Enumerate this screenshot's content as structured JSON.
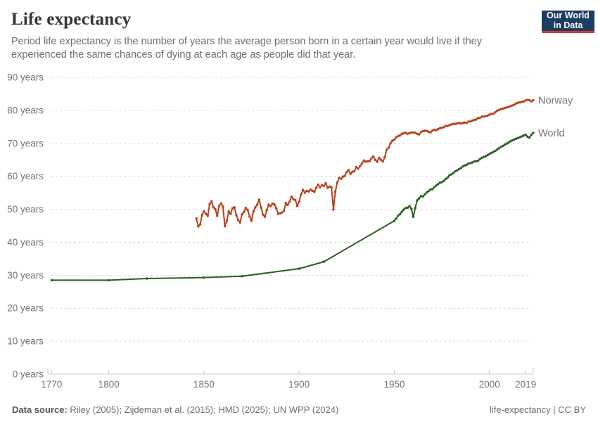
{
  "header": {
    "title": "Life expectancy",
    "subtitle": "Period life expectancy is the number of years the average person born in a certain year would live if they experienced the same chances of dying at each age as people did that year.",
    "logo": {
      "line1": "Our World",
      "line2": "in Data",
      "bg_color": "#1d3d63",
      "accent_color": "#d93a2d"
    }
  },
  "footer": {
    "source_label": "Data source:",
    "source_text": " Riley (2005); Zijdeman et al. (2015); HMD (2025); UN WPP (2024)",
    "license_text": "life-expectancy | CC BY"
  },
  "colors": {
    "norway_line": "#b5431f",
    "world_line": "#2c5e23",
    "grid": "#dadada",
    "axis": "#c8c8c8",
    "axis_text": "#737373"
  },
  "chart_data": {
    "type": "line",
    "title": "Life expectancy",
    "xlabel": "",
    "ylabel": "",
    "xlim": [
      1768,
      2023
    ],
    "ylim": [
      0,
      90
    ],
    "grid": "horizontal-dashed",
    "legend_position": "line-end-labels",
    "x_ticks": [
      {
        "year": 1770,
        "label": "1770"
      },
      {
        "year": 1800,
        "label": "1800"
      },
      {
        "year": 1850,
        "label": "1850"
      },
      {
        "year": 1900,
        "label": "1900"
      },
      {
        "year": 1950,
        "label": "1950"
      },
      {
        "year": 2000,
        "label": "2000"
      },
      {
        "year": 2019,
        "label": "2019"
      }
    ],
    "y_ticks": [
      {
        "value": 0,
        "label": "0 years"
      },
      {
        "value": 10,
        "label": "10 years"
      },
      {
        "value": 20,
        "label": "20 years"
      },
      {
        "value": 30,
        "label": "30 years"
      },
      {
        "value": 40,
        "label": "40 years"
      },
      {
        "value": 50,
        "label": "50 years"
      },
      {
        "value": 60,
        "label": "60 years"
      },
      {
        "value": 70,
        "label": "70 years"
      },
      {
        "value": 80,
        "label": "80 years"
      },
      {
        "value": 90,
        "label": "90 years"
      }
    ],
    "series": [
      {
        "name": "Norway",
        "color": "#b5431f",
        "points": [
          [
            1846,
            47.2
          ],
          [
            1847,
            44.8
          ],
          [
            1848,
            45.4
          ],
          [
            1849,
            48.3
          ],
          [
            1850,
            49.4
          ],
          [
            1851,
            48.6
          ],
          [
            1852,
            48.0
          ],
          [
            1853,
            51.6
          ],
          [
            1854,
            52.4
          ],
          [
            1855,
            50.6
          ],
          [
            1856,
            50.0
          ],
          [
            1857,
            48.0
          ],
          [
            1858,
            51.0
          ],
          [
            1859,
            51.8
          ],
          [
            1860,
            50.8
          ],
          [
            1861,
            44.9
          ],
          [
            1862,
            46.4
          ],
          [
            1863,
            49.4
          ],
          [
            1864,
            48.6
          ],
          [
            1865,
            50.3
          ],
          [
            1866,
            50.6
          ],
          [
            1867,
            48.2
          ],
          [
            1868,
            46.7
          ],
          [
            1869,
            46.0
          ],
          [
            1870,
            48.5
          ],
          [
            1871,
            49.2
          ],
          [
            1872,
            50.4
          ],
          [
            1873,
            49.8
          ],
          [
            1874,
            47.8
          ],
          [
            1875,
            46.5
          ],
          [
            1876,
            49.3
          ],
          [
            1877,
            50.6
          ],
          [
            1878,
            51.4
          ],
          [
            1879,
            52.9
          ],
          [
            1880,
            50.5
          ],
          [
            1881,
            48.4
          ],
          [
            1882,
            47.7
          ],
          [
            1883,
            49.7
          ],
          [
            1884,
            51.4
          ],
          [
            1885,
            51.0
          ],
          [
            1886,
            51.7
          ],
          [
            1887,
            51.5
          ],
          [
            1888,
            50.3
          ],
          [
            1889,
            48.6
          ],
          [
            1890,
            48.8
          ],
          [
            1891,
            49.0
          ],
          [
            1892,
            49.5
          ],
          [
            1893,
            51.9
          ],
          [
            1894,
            51.3
          ],
          [
            1895,
            52.3
          ],
          [
            1896,
            53.8
          ],
          [
            1897,
            53.0
          ],
          [
            1898,
            52.8
          ],
          [
            1899,
            51.0
          ],
          [
            1900,
            52.3
          ],
          [
            1901,
            54.5
          ],
          [
            1902,
            55.9
          ],
          [
            1903,
            55.0
          ],
          [
            1904,
            55.6
          ],
          [
            1905,
            55.4
          ],
          [
            1906,
            56.0
          ],
          [
            1907,
            55.6
          ],
          [
            1908,
            55.3
          ],
          [
            1909,
            56.5
          ],
          [
            1910,
            57.5
          ],
          [
            1911,
            56.6
          ],
          [
            1912,
            57.3
          ],
          [
            1913,
            57.1
          ],
          [
            1914,
            57.9
          ],
          [
            1915,
            56.5
          ],
          [
            1916,
            56.9
          ],
          [
            1917,
            56.6
          ],
          [
            1918,
            49.9
          ],
          [
            1919,
            55.3
          ],
          [
            1920,
            58.1
          ],
          [
            1921,
            59.5
          ],
          [
            1922,
            59.2
          ],
          [
            1923,
            59.9
          ],
          [
            1924,
            60.1
          ],
          [
            1925,
            61.3
          ],
          [
            1926,
            61.9
          ],
          [
            1927,
            60.7
          ],
          [
            1928,
            61.4
          ],
          [
            1929,
            61.5
          ],
          [
            1930,
            62.8
          ],
          [
            1931,
            62.3
          ],
          [
            1932,
            63.1
          ],
          [
            1933,
            63.9
          ],
          [
            1934,
            64.8
          ],
          [
            1935,
            64.4
          ],
          [
            1936,
            64.6
          ],
          [
            1937,
            64.6
          ],
          [
            1938,
            65.5
          ],
          [
            1939,
            66.0
          ],
          [
            1940,
            65.0
          ],
          [
            1941,
            64.4
          ],
          [
            1942,
            65.6
          ],
          [
            1943,
            65.0
          ],
          [
            1944,
            64.5
          ],
          [
            1945,
            65.8
          ],
          [
            1946,
            68.1
          ],
          [
            1947,
            68.7
          ],
          [
            1948,
            70.0
          ],
          [
            1949,
            70.8
          ],
          [
            1950,
            71.1
          ],
          [
            1951,
            71.8
          ],
          [
            1952,
            72.2
          ],
          [
            1953,
            72.4
          ],
          [
            1954,
            72.9
          ],
          [
            1955,
            73.1
          ],
          [
            1956,
            73.2
          ],
          [
            1957,
            72.9
          ],
          [
            1958,
            73.1
          ],
          [
            1959,
            73.3
          ],
          [
            1960,
            73.3
          ],
          [
            1961,
            73.2
          ],
          [
            1962,
            72.9
          ],
          [
            1963,
            72.7
          ],
          [
            1964,
            73.4
          ],
          [
            1965,
            73.7
          ],
          [
            1966,
            73.8
          ],
          [
            1967,
            73.8
          ],
          [
            1968,
            73.5
          ],
          [
            1969,
            73.3
          ],
          [
            1970,
            73.8
          ],
          [
            1971,
            74.1
          ],
          [
            1972,
            74.0
          ],
          [
            1973,
            74.3
          ],
          [
            1974,
            74.6
          ],
          [
            1975,
            74.7
          ],
          [
            1976,
            74.9
          ],
          [
            1977,
            75.3
          ],
          [
            1978,
            75.3
          ],
          [
            1979,
            75.5
          ],
          [
            1980,
            75.7
          ],
          [
            1981,
            75.9
          ],
          [
            1982,
            75.9
          ],
          [
            1983,
            76.0
          ],
          [
            1984,
            76.2
          ],
          [
            1985,
            76.0
          ],
          [
            1986,
            76.2
          ],
          [
            1987,
            76.3
          ],
          [
            1988,
            76.2
          ],
          [
            1989,
            76.6
          ],
          [
            1990,
            76.6
          ],
          [
            1991,
            76.9
          ],
          [
            1992,
            77.1
          ],
          [
            1993,
            77.2
          ],
          [
            1994,
            77.7
          ],
          [
            1995,
            77.7
          ],
          [
            1996,
            78.1
          ],
          [
            1997,
            78.1
          ],
          [
            1998,
            78.3
          ],
          [
            1999,
            78.4
          ],
          [
            2000,
            78.7
          ],
          [
            2001,
            78.9
          ],
          [
            2002,
            79.0
          ],
          [
            2003,
            79.4
          ],
          [
            2004,
            79.9
          ],
          [
            2005,
            80.1
          ],
          [
            2006,
            80.4
          ],
          [
            2007,
            80.5
          ],
          [
            2008,
            80.7
          ],
          [
            2009,
            80.9
          ],
          [
            2010,
            81.0
          ],
          [
            2011,
            81.3
          ],
          [
            2012,
            81.5
          ],
          [
            2013,
            81.7
          ],
          [
            2014,
            82.1
          ],
          [
            2015,
            82.3
          ],
          [
            2016,
            82.4
          ],
          [
            2017,
            82.6
          ],
          [
            2018,
            82.7
          ],
          [
            2019,
            83.0
          ],
          [
            2020,
            83.2
          ],
          [
            2021,
            83.1
          ],
          [
            2022,
            82.7
          ],
          [
            2023,
            83.1
          ]
        ]
      },
      {
        "name": "World",
        "color": "#2c5e23",
        "points": [
          [
            1770,
            28.5
          ],
          [
            1800,
            28.5
          ],
          [
            1820,
            29.0
          ],
          [
            1850,
            29.3
          ],
          [
            1870,
            29.7
          ],
          [
            1900,
            32.0
          ],
          [
            1913,
            34.1
          ],
          [
            1950,
            46.5
          ],
          [
            1951,
            47.2
          ],
          [
            1952,
            48.1
          ],
          [
            1953,
            48.5
          ],
          [
            1954,
            49.3
          ],
          [
            1955,
            49.9
          ],
          [
            1956,
            50.4
          ],
          [
            1957,
            50.5
          ],
          [
            1958,
            51.0
          ],
          [
            1959,
            50.1
          ],
          [
            1960,
            47.7
          ],
          [
            1961,
            50.4
          ],
          [
            1962,
            52.7
          ],
          [
            1963,
            53.3
          ],
          [
            1964,
            54.0
          ],
          [
            1965,
            53.9
          ],
          [
            1966,
            54.5
          ],
          [
            1967,
            55.1
          ],
          [
            1968,
            55.5
          ],
          [
            1969,
            56.0
          ],
          [
            1970,
            56.1
          ],
          [
            1971,
            56.7
          ],
          [
            1972,
            57.2
          ],
          [
            1973,
            57.6
          ],
          [
            1974,
            58.1
          ],
          [
            1975,
            58.2
          ],
          [
            1976,
            58.6
          ],
          [
            1977,
            59.2
          ],
          [
            1978,
            59.6
          ],
          [
            1979,
            60.3
          ],
          [
            1980,
            60.6
          ],
          [
            1981,
            61.0
          ],
          [
            1982,
            61.5
          ],
          [
            1983,
            61.8
          ],
          [
            1984,
            62.2
          ],
          [
            1985,
            62.5
          ],
          [
            1986,
            63.0
          ],
          [
            1987,
            63.3
          ],
          [
            1988,
            63.5
          ],
          [
            1989,
            63.9
          ],
          [
            1990,
            64.0
          ],
          [
            1991,
            64.2
          ],
          [
            1992,
            64.5
          ],
          [
            1993,
            64.6
          ],
          [
            1994,
            64.7
          ],
          [
            1995,
            65.2
          ],
          [
            1996,
            65.6
          ],
          [
            1997,
            65.9
          ],
          [
            1998,
            66.1
          ],
          [
            1999,
            66.4
          ],
          [
            2000,
            66.8
          ],
          [
            2001,
            67.1
          ],
          [
            2002,
            67.4
          ],
          [
            2003,
            67.7
          ],
          [
            2004,
            68.1
          ],
          [
            2005,
            68.5
          ],
          [
            2006,
            68.9
          ],
          [
            2007,
            69.2
          ],
          [
            2008,
            69.6
          ],
          [
            2009,
            69.9
          ],
          [
            2010,
            70.2
          ],
          [
            2011,
            70.6
          ],
          [
            2012,
            70.9
          ],
          [
            2013,
            71.2
          ],
          [
            2014,
            71.4
          ],
          [
            2015,
            71.6
          ],
          [
            2016,
            71.9
          ],
          [
            2017,
            72.1
          ],
          [
            2018,
            72.4
          ],
          [
            2019,
            72.6
          ],
          [
            2020,
            72.0
          ],
          [
            2021,
            71.7
          ],
          [
            2022,
            72.6
          ],
          [
            2023,
            73.2
          ]
        ]
      }
    ]
  }
}
